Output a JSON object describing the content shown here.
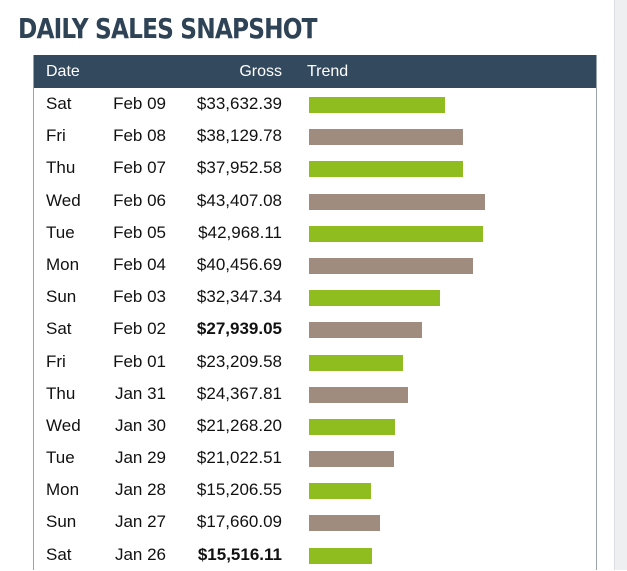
{
  "title": "DAILY SALES SNAPSHOT",
  "columns": {
    "date": "Date",
    "gross": "Gross",
    "trend": "Trend"
  },
  "colors": {
    "header_bg": "#33495e",
    "title": "#2e4356",
    "up": "#8fbc1e",
    "down": "#a08b7f"
  },
  "chart_data": {
    "type": "table",
    "title": "DAILY SALES SNAPSHOT",
    "columns": [
      "Date",
      "Gross",
      "Trend"
    ],
    "trend_max": 44000,
    "rows": [
      {
        "day": "Sat",
        "date": "Feb 09",
        "gross": "$33,632.39",
        "value": 33632.39,
        "trend": "up",
        "bold": false
      },
      {
        "day": "Fri",
        "date": "Feb 08",
        "gross": "$38,129.78",
        "value": 38129.78,
        "trend": "down",
        "bold": false
      },
      {
        "day": "Thu",
        "date": "Feb 07",
        "gross": "$37,952.58",
        "value": 37952.58,
        "trend": "up",
        "bold": false
      },
      {
        "day": "Wed",
        "date": "Feb 06",
        "gross": "$43,407.08",
        "value": 43407.08,
        "trend": "down",
        "bold": false
      },
      {
        "day": "Tue",
        "date": "Feb 05",
        "gross": "$42,968.11",
        "value": 42968.11,
        "trend": "up",
        "bold": false
      },
      {
        "day": "Mon",
        "date": "Feb 04",
        "gross": "$40,456.69",
        "value": 40456.69,
        "trend": "down",
        "bold": false
      },
      {
        "day": "Sun",
        "date": "Feb 03",
        "gross": "$32,347.34",
        "value": 32347.34,
        "trend": "up",
        "bold": false
      },
      {
        "day": "Sat",
        "date": "Feb 02",
        "gross": "$27,939.05",
        "value": 27939.05,
        "trend": "down",
        "bold": true
      },
      {
        "day": "Fri",
        "date": "Feb 01",
        "gross": "$23,209.58",
        "value": 23209.58,
        "trend": "up",
        "bold": false
      },
      {
        "day": "Thu",
        "date": "Jan 31",
        "gross": "$24,367.81",
        "value": 24367.81,
        "trend": "down",
        "bold": false
      },
      {
        "day": "Wed",
        "date": "Jan 30",
        "gross": "$21,268.20",
        "value": 21268.2,
        "trend": "up",
        "bold": false
      },
      {
        "day": "Tue",
        "date": "Jan 29",
        "gross": "$21,022.51",
        "value": 21022.51,
        "trend": "down",
        "bold": false
      },
      {
        "day": "Mon",
        "date": "Jan 28",
        "gross": "$15,206.55",
        "value": 15206.55,
        "trend": "up",
        "bold": false
      },
      {
        "day": "Sun",
        "date": "Jan 27",
        "gross": "$17,660.09",
        "value": 17660.09,
        "trend": "down",
        "bold": false
      },
      {
        "day": "Sat",
        "date": "Jan 26",
        "gross": "$15,516.11",
        "value": 15516.11,
        "trend": "up",
        "bold": true
      }
    ]
  }
}
